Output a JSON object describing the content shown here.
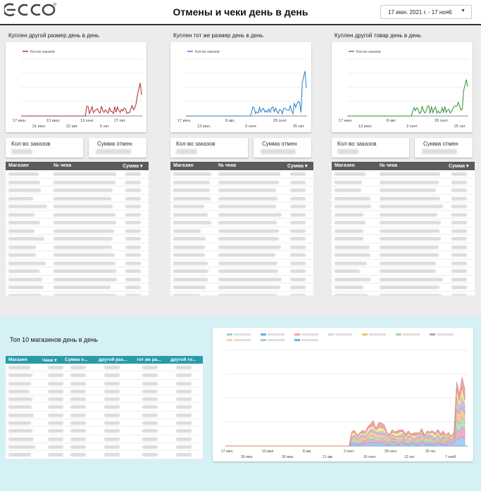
{
  "header": {
    "title": "Отмены и чеки день в день",
    "date_range": "17 июн. 2021 г. - 17 ноя6"
  },
  "panels": [
    {
      "title": "Куплен другой размер день в день",
      "legend": "Кол-во заказов",
      "x_ticks_top": [
        "17 июн.",
        "13 июл.",
        "13 сент.",
        "27 окт."
      ],
      "x_ticks_bottom": [
        "31 июл.",
        "22 авг.",
        "5 окт."
      ],
      "kpi1": "Кол-во заказов",
      "kpi2": "Сумма отмен",
      "col1": "Магазин",
      "col2": "№ чека",
      "col3": "Сумма ▾",
      "color": "#b33b3b"
    },
    {
      "title": "Куплен тот же размер день в день",
      "legend": "Кол-во заказов",
      "x_ticks_top": [
        "17 июн.",
        "8 авг.",
        "29 сент."
      ],
      "x_ticks_bottom": [
        "13 июл.",
        "3 сент.",
        "25 окт."
      ],
      "kpi1": "Кол-во заказов",
      "kpi2": "Сумма отмен",
      "col1": "Магазин",
      "col2": "№ чека",
      "col3": "Сумма ▾",
      "color": "#3a86d1"
    },
    {
      "title": "Куплен другой товар день в день",
      "legend": "Кол-во заказов",
      "x_ticks_top": [
        "17 июн.",
        "8 авг.",
        "29 сент."
      ],
      "x_ticks_bottom": [
        "13 июл.",
        "3 сент.",
        "25 окт."
      ],
      "kpi1": "Кол-во заказов",
      "kpi2": "Сумма отмен",
      "col1": "Магазин",
      "col2": "№ чека",
      "col3": "Сумма ▾",
      "color": "#3f9a46"
    }
  ],
  "top10": {
    "title": "Топ 10 магазинов день в день",
    "columns": [
      "Магазин",
      "Чеки ▾",
      "Сумма о...",
      "другой раз...",
      "тот же ра...",
      "другой то..."
    ]
  },
  "bigchart": {
    "x_ticks_top": [
      "17 июн.",
      "13 июл.",
      "8 авг.",
      "3 сент.",
      "29 сент.",
      "25 окт."
    ],
    "x_ticks_bottom": [
      "30 июн.",
      "26 июл.",
      "21 авг.",
      "16 сент.",
      "12 окт.",
      "7 нояб."
    ]
  },
  "chart_data": {
    "type": "line",
    "title": "",
    "series": [
      {
        "name": "Кол-во заказов",
        "values": []
      }
    ]
  }
}
